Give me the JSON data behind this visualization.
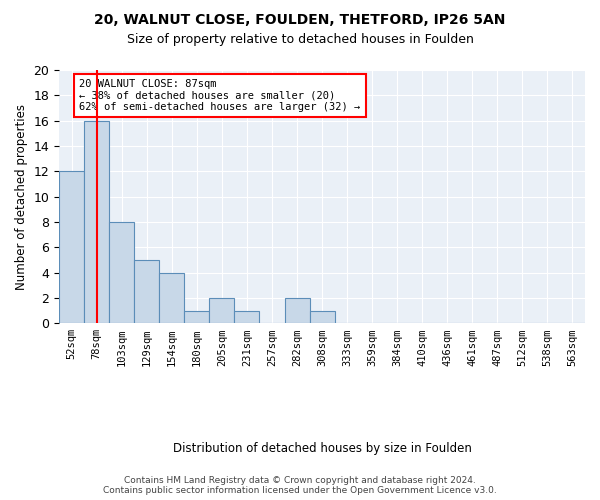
{
  "title1": "20, WALNUT CLOSE, FOULDEN, THETFORD, IP26 5AN",
  "title2": "Size of property relative to detached houses in Foulden",
  "xlabel": "Distribution of detached houses by size in Foulden",
  "ylabel": "Number of detached properties",
  "bin_labels": [
    "52sqm",
    "78sqm",
    "103sqm",
    "129sqm",
    "154sqm",
    "180sqm",
    "205sqm",
    "231sqm",
    "257sqm",
    "282sqm",
    "308sqm",
    "333sqm",
    "359sqm",
    "384sqm",
    "410sqm",
    "436sqm",
    "461sqm",
    "487sqm",
    "512sqm",
    "538sqm",
    "563sqm"
  ],
  "bar_values": [
    12,
    16,
    8,
    5,
    4,
    1,
    2,
    1,
    0,
    2,
    1,
    0,
    0,
    0,
    0,
    0,
    0,
    0,
    0,
    0,
    0
  ],
  "bar_color": "#c8d8e8",
  "bar_edge_color": "#5b8db8",
  "ylim": [
    0,
    20
  ],
  "yticks": [
    0,
    2,
    4,
    6,
    8,
    10,
    12,
    14,
    16,
    18,
    20
  ],
  "red_line_x": 1,
  "annotation_line1": "20 WALNUT CLOSE: 87sqm",
  "annotation_line2": "← 38% of detached houses are smaller (20)",
  "annotation_line3": "62% of semi-detached houses are larger (32) →",
  "annotation_box_color": "white",
  "annotation_box_edge": "red",
  "footer1": "Contains HM Land Registry data © Crown copyright and database right 2024.",
  "footer2": "Contains public sector information licensed under the Open Government Licence v3.0.",
  "background_color": "#eaf0f7"
}
